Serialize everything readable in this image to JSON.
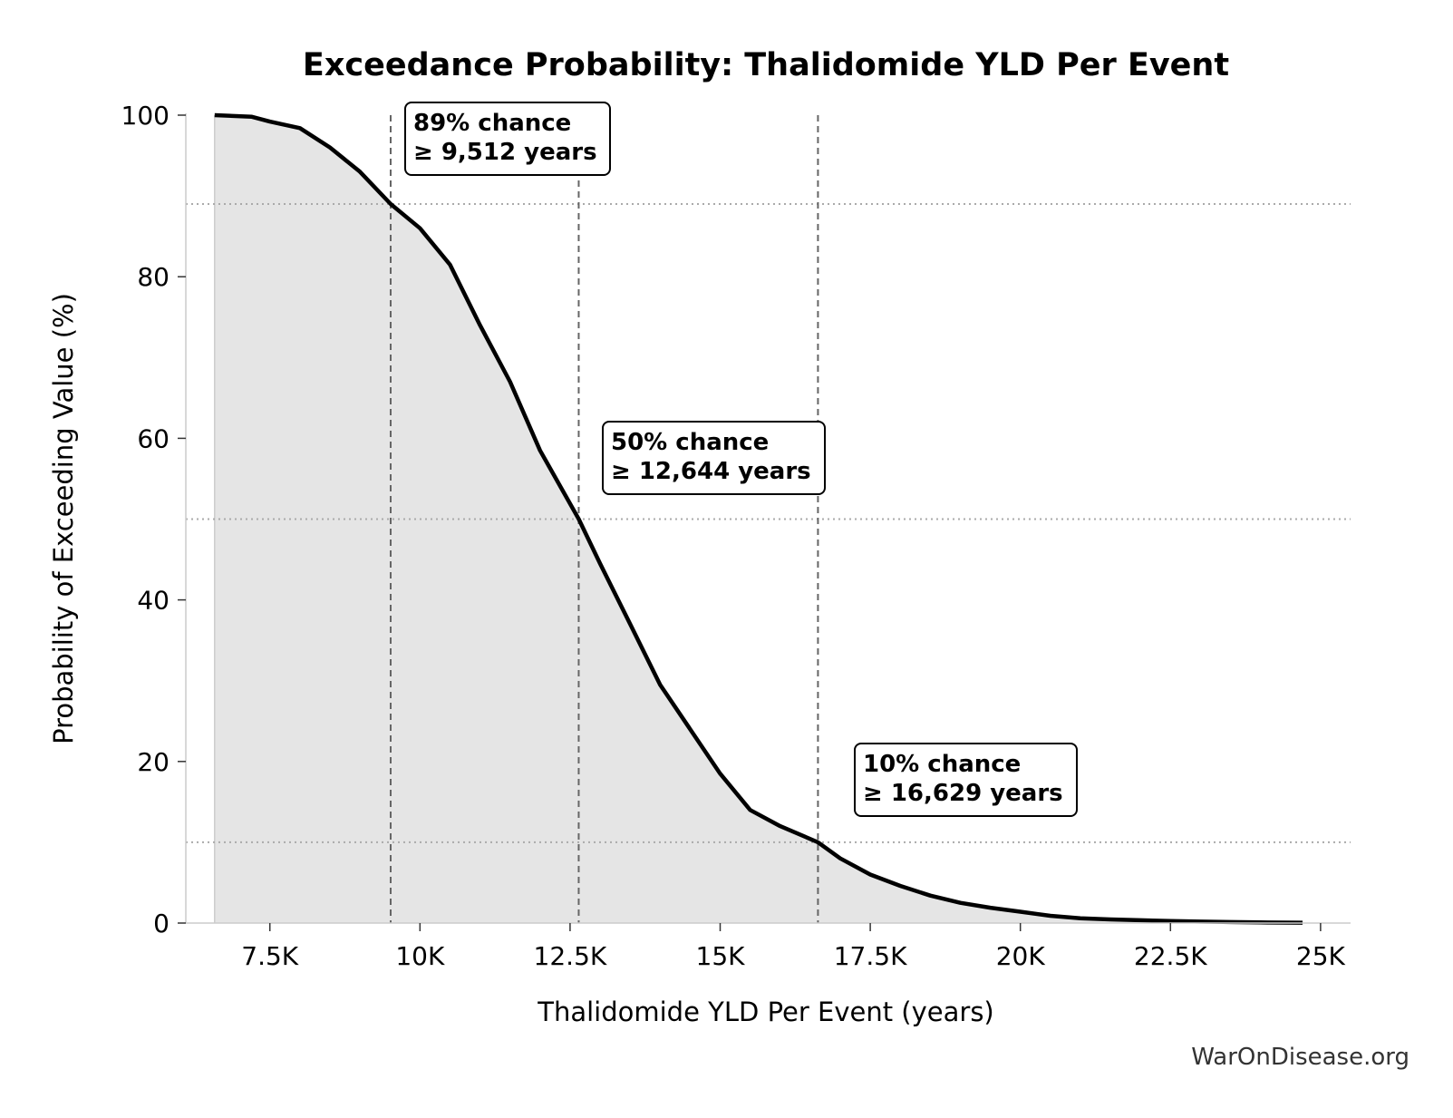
{
  "chart_data": {
    "type": "area",
    "title": "Exceedance Probability: Thalidomide YLD Per Event",
    "xlabel": "Thalidomide YLD Per Event (years)",
    "ylabel": "Probability of Exceeding Value (%)",
    "xlim": [
      6100,
      25500
    ],
    "ylim": [
      0,
      100
    ],
    "x_ticks": [
      {
        "value": 7500,
        "label": "7.5K"
      },
      {
        "value": 10000,
        "label": "10K"
      },
      {
        "value": 12500,
        "label": "12.5K"
      },
      {
        "value": 15000,
        "label": "15K"
      },
      {
        "value": 17500,
        "label": "17.5K"
      },
      {
        "value": 20000,
        "label": "20K"
      },
      {
        "value": 22500,
        "label": "22.5K"
      },
      {
        "value": 25000,
        "label": "25K"
      }
    ],
    "y_ticks": [
      {
        "value": 0,
        "label": "0"
      },
      {
        "value": 20,
        "label": "20"
      },
      {
        "value": 40,
        "label": "40"
      },
      {
        "value": 60,
        "label": "60"
      },
      {
        "value": 80,
        "label": "80"
      },
      {
        "value": 100,
        "label": "100"
      }
    ],
    "series": [
      {
        "x": [
          6580,
          7200,
          7500,
          8000,
          8500,
          9000,
          9512,
          10000,
          10500,
          11000,
          11500,
          12000,
          12644,
          13000,
          13500,
          14000,
          14500,
          15000,
          15500,
          16000,
          16629,
          17000,
          17500,
          18000,
          18500,
          19000,
          19500,
          20000,
          20500,
          21000,
          21500,
          22000,
          22500,
          23000,
          23500,
          24000,
          24700
        ],
        "y": [
          100,
          99.8,
          99.2,
          98.4,
          96,
          93,
          89,
          86,
          81.5,
          74,
          67,
          58.5,
          50,
          44.5,
          37,
          29.5,
          24,
          18.5,
          14,
          12,
          10,
          8,
          6,
          4.6,
          3.4,
          2.5,
          1.9,
          1.4,
          0.9,
          0.6,
          0.45,
          0.35,
          0.25,
          0.18,
          0.12,
          0.08,
          0.05
        ]
      }
    ],
    "annotations": [
      {
        "prob": 89,
        "value": 9512,
        "line1": "89% chance",
        "line2": "≥ 9,512 years"
      },
      {
        "prob": 50,
        "value": 12644,
        "line1": "50% chance",
        "line2": "≥ 12,644 years"
      },
      {
        "prob": 10,
        "value": 16629,
        "line1": "10% chance",
        "line2": "≥ 16,629 years"
      }
    ],
    "colors": {
      "line": "#000000",
      "fill": "#e5e5e5",
      "vline": "#666666",
      "hline": "#aaaaaa"
    },
    "grid": false,
    "legend": "none"
  },
  "watermark": "WarOnDisease.org"
}
